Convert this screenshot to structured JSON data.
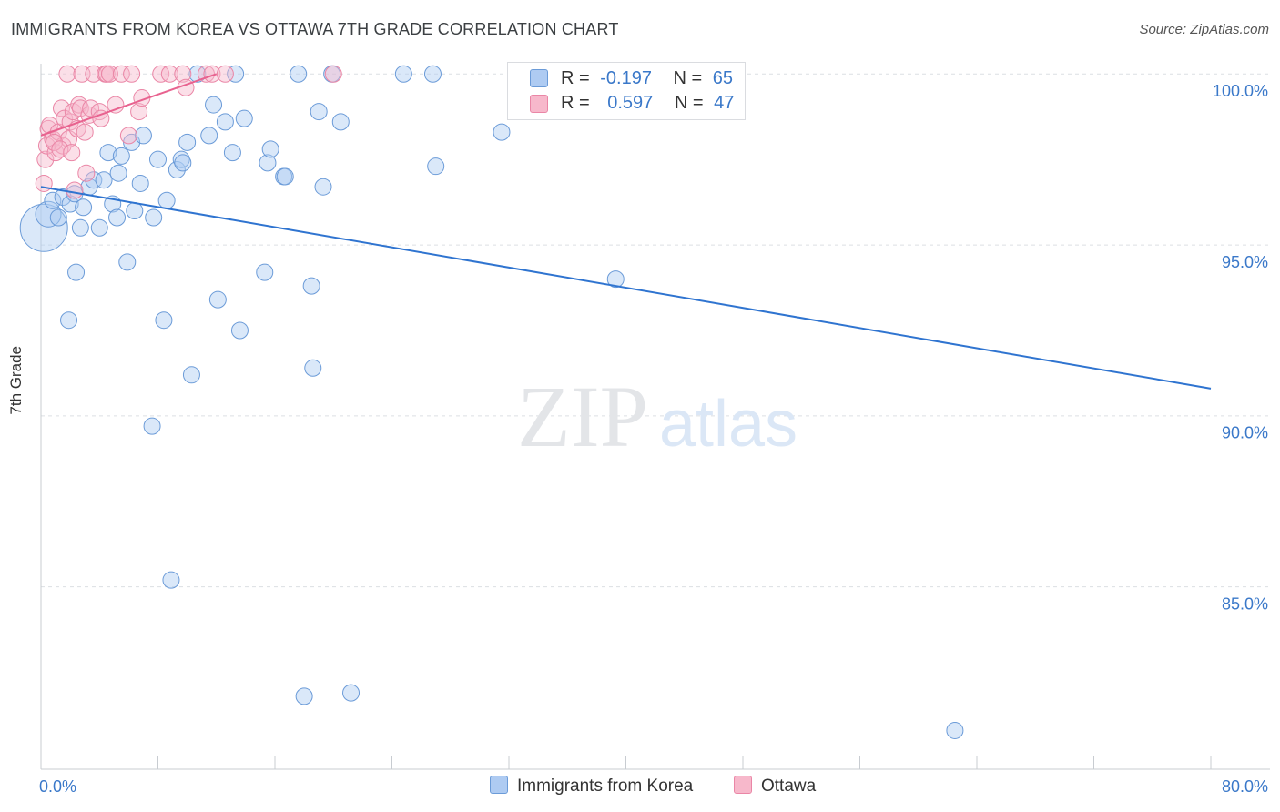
{
  "title": "IMMIGRANTS FROM KOREA VS OTTAWA 7TH GRADE CORRELATION CHART",
  "source": "Source: ZipAtlas.com",
  "watermark": {
    "zip": "ZIP",
    "atlas": "atlas"
  },
  "colors": {
    "blue_fill": "#aecbf2",
    "blue_stroke": "#6b9bd8",
    "blue_line": "#2f74d0",
    "pink_fill": "#f7b8cb",
    "pink_stroke": "#ea86a6",
    "pink_line": "#e8628f",
    "grid": "#dcdfe3",
    "tick_label": "#3a78c9"
  },
  "legend_top": {
    "rows": [
      {
        "r_label": "R =",
        "r_value": "-0.197",
        "n_label": "N =",
        "n_value": "65"
      },
      {
        "r_label": "R =",
        "r_value": "0.597",
        "n_label": "N =",
        "n_value": "47"
      }
    ]
  },
  "legend_bottom": [
    {
      "label": "Immigrants from Korea"
    },
    {
      "label": "Ottawa"
    }
  ],
  "chart_data": {
    "type": "scatter",
    "title": "IMMIGRANTS FROM KOREA VS OTTAWA 7TH GRADE CORRELATION CHART",
    "xlabel": "",
    "ylabel": "7th Grade",
    "xlim": [
      0,
      80
    ],
    "ylim": [
      80.3,
      100.8
    ],
    "x_tick_labels": [
      {
        "value": 0,
        "label": "0.0%"
      },
      {
        "value": 80,
        "label": "80.0%"
      }
    ],
    "x_minor_ticks": [
      0,
      8,
      16,
      24,
      32,
      40,
      48,
      56,
      64,
      72,
      80
    ],
    "y_tick_labels": [
      {
        "value": 100,
        "label": "100.0%"
      },
      {
        "value": 95,
        "label": "95.0%"
      },
      {
        "value": 90,
        "label": "90.0%"
      },
      {
        "value": 85,
        "label": "85.0%"
      }
    ],
    "y_grid": [
      100.5,
      95.5,
      90.5,
      85.5
    ],
    "series": [
      {
        "name": "Immigrants from Korea",
        "color": "blue",
        "R": -0.197,
        "N": 65,
        "trend": {
          "x": [
            0,
            80
          ],
          "y": [
            97.2,
            91.3
          ]
        },
        "points": [
          [
            0.2,
            96.0,
            26
          ],
          [
            0.5,
            96.4,
            14
          ],
          [
            0.8,
            96.8,
            9
          ],
          [
            1.2,
            96.3,
            9
          ],
          [
            1.5,
            96.9,
            9
          ],
          [
            2.0,
            96.7,
            9
          ],
          [
            2.3,
            97.0,
            9
          ],
          [
            2.7,
            96.0,
            9
          ],
          [
            2.9,
            96.6,
            9
          ],
          [
            3.3,
            97.2,
            9
          ],
          [
            3.6,
            97.4,
            9
          ],
          [
            4.0,
            96.0,
            9
          ],
          [
            4.3,
            97.4,
            9
          ],
          [
            4.6,
            98.2,
            9
          ],
          [
            4.9,
            96.7,
            9
          ],
          [
            5.2,
            96.3,
            9
          ],
          [
            5.5,
            98.1,
            9
          ],
          [
            5.9,
            95.0,
            9
          ],
          [
            6.2,
            98.5,
            9
          ],
          [
            6.4,
            96.5,
            9
          ],
          [
            6.8,
            97.3,
            9
          ],
          [
            7.0,
            98.7,
            9
          ],
          [
            7.7,
            96.3,
            9
          ],
          [
            8.0,
            98.0,
            9
          ],
          [
            8.4,
            93.3,
            9
          ],
          [
            8.6,
            96.8,
            9
          ],
          [
            9.3,
            97.7,
            9
          ],
          [
            9.6,
            98.0,
            9
          ],
          [
            9.7,
            97.9,
            9
          ],
          [
            10.3,
            91.7,
            9
          ],
          [
            10.7,
            100.5,
            9
          ],
          [
            11.5,
            98.7,
            9
          ],
          [
            11.8,
            99.6,
            9
          ],
          [
            12.1,
            93.9,
            9
          ],
          [
            12.6,
            99.1,
            9
          ],
          [
            13.1,
            98.2,
            9
          ],
          [
            13.3,
            100.5,
            9
          ],
          [
            13.6,
            93.0,
            9
          ],
          [
            13.9,
            99.2,
            9
          ],
          [
            15.3,
            94.7,
            9
          ],
          [
            15.5,
            97.9,
            9
          ],
          [
            15.7,
            98.3,
            9
          ],
          [
            16.6,
            97.5,
            9
          ],
          [
            16.7,
            97.5,
            9
          ],
          [
            17.6,
            100.5,
            9
          ],
          [
            18.0,
            82.3,
            9
          ],
          [
            18.5,
            94.3,
            9
          ],
          [
            18.6,
            91.9,
            9
          ],
          [
            19.0,
            99.4,
            9
          ],
          [
            19.3,
            97.2,
            9
          ],
          [
            19.9,
            100.5,
            9
          ],
          [
            20.5,
            99.1,
            9
          ],
          [
            21.2,
            82.4,
            9
          ],
          [
            24.8,
            100.5,
            9
          ],
          [
            26.8,
            100.5,
            9
          ],
          [
            27.0,
            97.8,
            9
          ],
          [
            31.5,
            98.8,
            9
          ],
          [
            39.3,
            94.5,
            9
          ],
          [
            62.5,
            81.3,
            9
          ],
          [
            7.6,
            90.2,
            9
          ],
          [
            8.9,
            85.7,
            9
          ],
          [
            2.4,
            94.7,
            9
          ],
          [
            1.9,
            93.3,
            9
          ],
          [
            5.3,
            97.6,
            9
          ],
          [
            10.0,
            98.5,
            9
          ]
        ]
      },
      {
        "name": "Ottawa",
        "color": "pink",
        "R": 0.597,
        "N": 47,
        "trend": {
          "x": [
            0,
            12
          ],
          "y": [
            98.7,
            100.5
          ]
        },
        "points": [
          [
            0.2,
            97.3,
            9
          ],
          [
            0.3,
            98.0,
            9
          ],
          [
            0.4,
            98.4,
            9
          ],
          [
            0.5,
            98.9,
            9
          ],
          [
            0.6,
            99.0,
            9
          ],
          [
            0.8,
            98.6,
            9
          ],
          [
            1.0,
            98.2,
            9
          ],
          [
            1.2,
            98.8,
            9
          ],
          [
            1.4,
            99.5,
            9
          ],
          [
            1.5,
            98.4,
            9
          ],
          [
            1.6,
            99.2,
            9
          ],
          [
            1.8,
            100.5,
            9
          ],
          [
            1.9,
            98.6,
            9
          ],
          [
            2.0,
            99.1,
            9
          ],
          [
            2.2,
            99.4,
            9
          ],
          [
            2.3,
            97.1,
            9
          ],
          [
            2.5,
            98.9,
            9
          ],
          [
            2.6,
            99.6,
            9
          ],
          [
            2.7,
            99.5,
            9
          ],
          [
            2.8,
            100.5,
            9
          ],
          [
            3.0,
            98.8,
            9
          ],
          [
            3.1,
            97.6,
            9
          ],
          [
            3.3,
            99.3,
            9
          ],
          [
            3.4,
            99.5,
            9
          ],
          [
            3.6,
            100.5,
            9
          ],
          [
            4.0,
            99.4,
            9
          ],
          [
            4.1,
            99.2,
            9
          ],
          [
            4.4,
            100.5,
            9
          ],
          [
            4.5,
            100.5,
            9
          ],
          [
            4.7,
            100.5,
            9
          ],
          [
            5.1,
            99.6,
            9
          ],
          [
            5.5,
            100.5,
            9
          ],
          [
            6.0,
            98.7,
            9
          ],
          [
            6.2,
            100.5,
            9
          ],
          [
            6.7,
            99.4,
            9
          ],
          [
            6.9,
            99.8,
            9
          ],
          [
            8.2,
            100.5,
            9
          ],
          [
            8.8,
            100.5,
            9
          ],
          [
            9.7,
            100.5,
            9
          ],
          [
            9.9,
            100.1,
            9
          ],
          [
            11.3,
            100.5,
            9
          ],
          [
            11.7,
            100.5,
            9
          ],
          [
            12.6,
            100.5,
            9
          ],
          [
            20.0,
            100.5,
            9
          ],
          [
            0.9,
            98.5,
            9
          ],
          [
            1.3,
            98.3,
            9
          ],
          [
            2.1,
            98.2,
            9
          ]
        ]
      }
    ]
  }
}
